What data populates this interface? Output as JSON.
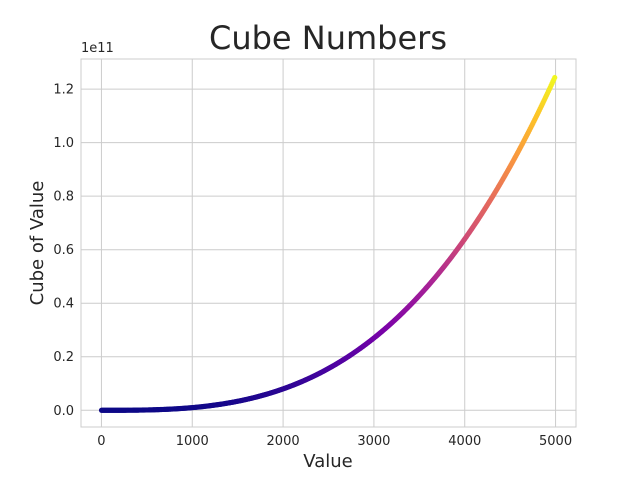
{
  "chart_data": {
    "type": "scatter",
    "title": "Cube Numbers",
    "xlabel": "Value",
    "ylabel": "Cube of Value",
    "y_offset_label": "1e11",
    "xlim": [
      -225,
      5225
    ],
    "ylim": [
      -6250000000,
      131250000000
    ],
    "x_ticks": [
      0,
      1000,
      2000,
      3000,
      4000,
      5000
    ],
    "x_tick_labels": [
      "0",
      "1000",
      "2000",
      "3000",
      "4000",
      "5000"
    ],
    "y_ticks": [
      0,
      20000000000,
      40000000000,
      60000000000,
      80000000000,
      100000000000,
      120000000000
    ],
    "y_tick_labels": [
      "0.0",
      "0.2",
      "0.4",
      "0.6",
      "0.8",
      "1.0",
      "1.2"
    ],
    "grid": true,
    "colormap": "plasma",
    "color_by": "y",
    "series": [
      {
        "x_start": 1,
        "x_end": 5000,
        "formula": "y = x^3",
        "sample_points": [
          {
            "x": 1000,
            "y": 1000000000
          },
          {
            "x": 2000,
            "y": 8000000000
          },
          {
            "x": 3000,
            "y": 27000000000
          },
          {
            "x": 4000,
            "y": 64000000000
          },
          {
            "x": 5000,
            "y": 125000000000
          }
        ]
      }
    ]
  }
}
